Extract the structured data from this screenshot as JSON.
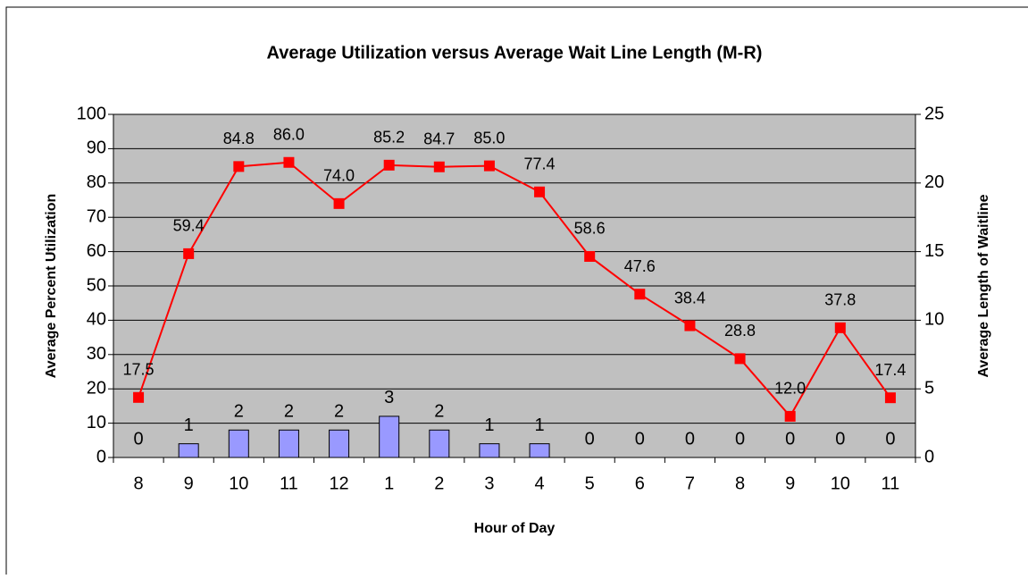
{
  "chart_data": {
    "type": "combo",
    "title": "Average Utilization versus Average Wait Line Length (M-R)",
    "x_label": "Hour of Day",
    "y_label": "Average Percent Utilization",
    "y2_label": "Average Length of Waitline",
    "categories": [
      "8",
      "9",
      "10",
      "11",
      "12",
      "1",
      "2",
      "3",
      "4",
      "5",
      "6",
      "7",
      "8",
      "9",
      "10",
      "11"
    ],
    "series": [
      {
        "name": "Average Length of Waitline",
        "type": "bar",
        "axis": "y2",
        "color": "#9999ff",
        "values": [
          0,
          1,
          2,
          2,
          2,
          3,
          2,
          1,
          1,
          0,
          0,
          0,
          0,
          0,
          0,
          0
        ]
      },
      {
        "name": "Average Percent Utilization",
        "type": "line",
        "color": "#ff0000",
        "values": [
          17.5,
          59.4,
          84.8,
          86.0,
          74.0,
          85.2,
          84.7,
          85.0,
          77.4,
          58.6,
          47.6,
          38.4,
          28.8,
          12.0,
          37.8,
          17.4
        ],
        "value_labels": [
          "17.5",
          "59.4",
          "84.8",
          "86.0",
          "74.0",
          "85.2",
          "84.7",
          "85.0",
          "77.4",
          "58.6",
          "47.6",
          "38.4",
          "28.8",
          "12.0",
          "37.8",
          "17.4"
        ]
      }
    ],
    "ylim": [
      0,
      100
    ],
    "yticks": [
      0,
      10,
      20,
      30,
      40,
      50,
      60,
      70,
      80,
      90,
      100
    ],
    "y2lim": [
      0,
      25
    ],
    "y2ticks": [
      0,
      5,
      10,
      15,
      20,
      25
    ],
    "grid": true,
    "plot_background": "#c0c0c0"
  }
}
